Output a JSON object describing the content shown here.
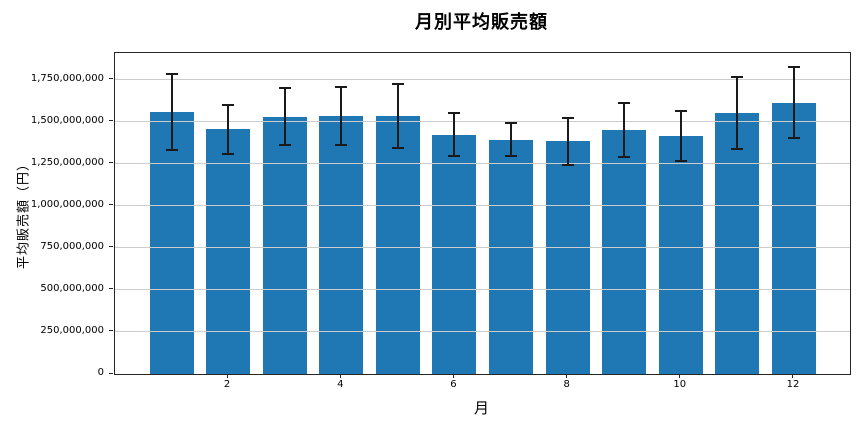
{
  "chart_data": {
    "type": "bar",
    "title": "月別平均販売額",
    "xlabel": "月",
    "ylabel": "平均販売額（円）",
    "categories": [
      1,
      2,
      3,
      4,
      5,
      6,
      7,
      8,
      9,
      10,
      11,
      12
    ],
    "values": [
      1560000000,
      1455000000,
      1530000000,
      1535000000,
      1535000000,
      1425000000,
      1395000000,
      1385000000,
      1450000000,
      1415000000,
      1555000000,
      1615000000
    ],
    "error_bars": [
      225000000,
      145000000,
      170000000,
      175000000,
      190000000,
      130000000,
      100000000,
      140000000,
      160000000,
      150000000,
      215000000,
      210000000
    ],
    "ylim": [
      0,
      1910000000
    ],
    "y_ticks": {
      "values": [
        0,
        250000000,
        500000000,
        750000000,
        1000000000,
        1250000000,
        1500000000,
        1750000000
      ],
      "labels": [
        "0",
        "250,000,000",
        "500,000,000",
        "750,000,000",
        "1,000,000,000",
        "1,250,000,000",
        "1,500,000,000",
        "1,750,000,000"
      ]
    },
    "x_ticks_labeled": [
      2,
      4,
      6,
      8,
      10,
      12
    ],
    "grid": "horizontal, drawn above bars",
    "legend": "none",
    "colors": {
      "bar": "#1f77b4",
      "error_bar": "#1a1a1a",
      "grid": "#cccccc",
      "spine": "#262626",
      "background": "#ffffff",
      "text": "#000000"
    }
  }
}
